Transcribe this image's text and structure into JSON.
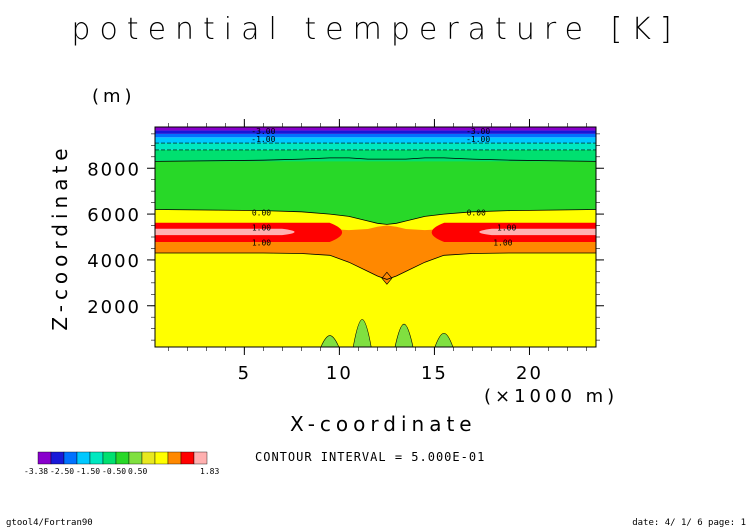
{
  "chart_data": {
    "type": "contour",
    "title": "potential temperature [K]",
    "xlabel": "X-coordinate",
    "ylabel": "Z-coordinate",
    "y_unit": "(m)",
    "x_unit": "(×1000 m)",
    "xlim": [
      0.3,
      23.5
    ],
    "ylim": [
      200,
      9800
    ],
    "x_ticks": [
      5,
      10,
      15,
      20
    ],
    "x_tick_labels": [
      "5",
      "10",
      "15",
      "20"
    ],
    "y_ticks": [
      2000,
      4000,
      6000,
      8000
    ],
    "y_tick_labels": [
      "2000",
      "4000",
      "6000",
      "8000"
    ],
    "contour_interval_text": "CONTOUR INTERVAL = 5.000E-01",
    "contour_labels": [
      {
        "text": "-3.00",
        "x": 6.0,
        "y": 9620
      },
      {
        "text": "-1.00",
        "x": 6.0,
        "y": 9270
      },
      {
        "text": "-3.00",
        "x": 17.3,
        "y": 9620
      },
      {
        "text": "-1.00",
        "x": 17.3,
        "y": 9270
      },
      {
        "text": "0.00",
        "x": 5.9,
        "y": 6070
      },
      {
        "text": "0.00",
        "x": 17.2,
        "y": 6070
      },
      {
        "text": "1.00",
        "x": 5.9,
        "y": 5420
      },
      {
        "text": "1.00",
        "x": 18.8,
        "y": 5420
      },
      {
        "text": "1.00",
        "x": 5.9,
        "y": 4770
      },
      {
        "text": "1.00",
        "x": 18.6,
        "y": 4770
      }
    ],
    "levels": [
      -3.38,
      -3.0,
      -2.5,
      -2.0,
      -1.5,
      -1.0,
      -0.5,
      0.0,
      0.5,
      1.0,
      1.5,
      1.83
    ],
    "colors": [
      "#8800cc",
      "#1818d8",
      "#0072ff",
      "#00c8ff",
      "#00e8c0",
      "#00e070",
      "#28d828",
      "#80e040",
      "#e8e820",
      "#ffff00",
      "#ff8800",
      "#ff0000",
      "#ffb0b0"
    ],
    "colorbar_labels": [
      "-3.38",
      "-2.50",
      "-1.50",
      "-0.50",
      "0.50",
      "1.83"
    ],
    "regions": {
      "x": [
        0.3,
        6.0,
        8.0,
        9.5,
        10.5,
        11.5,
        12.0,
        12.5,
        13.0,
        13.5,
        14.5,
        15.5,
        17.0,
        19.0,
        23.5
      ],
      "band_bounds": {
        "yellow_bottom": 200,
        "yellow_top": [
          4300,
          4300,
          4280,
          4200,
          3900,
          3500,
          3300,
          3150,
          3300,
          3500,
          3900,
          4200,
          4280,
          4300,
          4300
        ],
        "orange_top": [
          5000,
          5000,
          5050,
          5150,
          5200,
          5300,
          5400,
          5450,
          5400,
          5300,
          5200,
          5150,
          5050,
          5000,
          5000
        ],
        "red_top": [
          5400,
          5400,
          5400,
          5350,
          5300,
          5350,
          5450,
          5500,
          5450,
          5350,
          5300,
          5350,
          5400,
          5400,
          5400
        ],
        "light_yellow_top": [
          6200,
          6150,
          6100,
          6000,
          5900,
          5700,
          5600,
          5550,
          5600,
          5700,
          5900,
          6000,
          6100,
          6150,
          6200
        ],
        "green_top": [
          8300,
          8350,
          8400,
          8450,
          8450,
          8400,
          8400,
          8400,
          8400,
          8400,
          8450,
          8450,
          8400,
          8350,
          8300
        ]
      },
      "upper_bands": [
        {
          "from": 8300,
          "to": 8800,
          "color": "#00e070"
        },
        {
          "from": 8800,
          "to": 9100,
          "color": "#00e8c0"
        },
        {
          "from": 9100,
          "to": 9350,
          "color": "#00c8ff"
        },
        {
          "from": 9350,
          "to": 9500,
          "color": "#0072ff"
        },
        {
          "from": 9500,
          "to": 9650,
          "color": "#1818d8"
        },
        {
          "from": 9650,
          "to": 9800,
          "color": "#8800cc"
        }
      ],
      "green_spikes": [
        {
          "x": 9.5,
          "top": 700
        },
        {
          "x": 11.2,
          "top": 1400
        },
        {
          "x": 13.4,
          "top": 1200
        },
        {
          "x": 15.5,
          "top": 800
        }
      ],
      "orange_diamond": {
        "x": 12.5,
        "y": 3200
      }
    }
  },
  "footer": {
    "left": "gtool4/Fortran90",
    "right": "date: 4/ 1/ 6 page: 1"
  }
}
